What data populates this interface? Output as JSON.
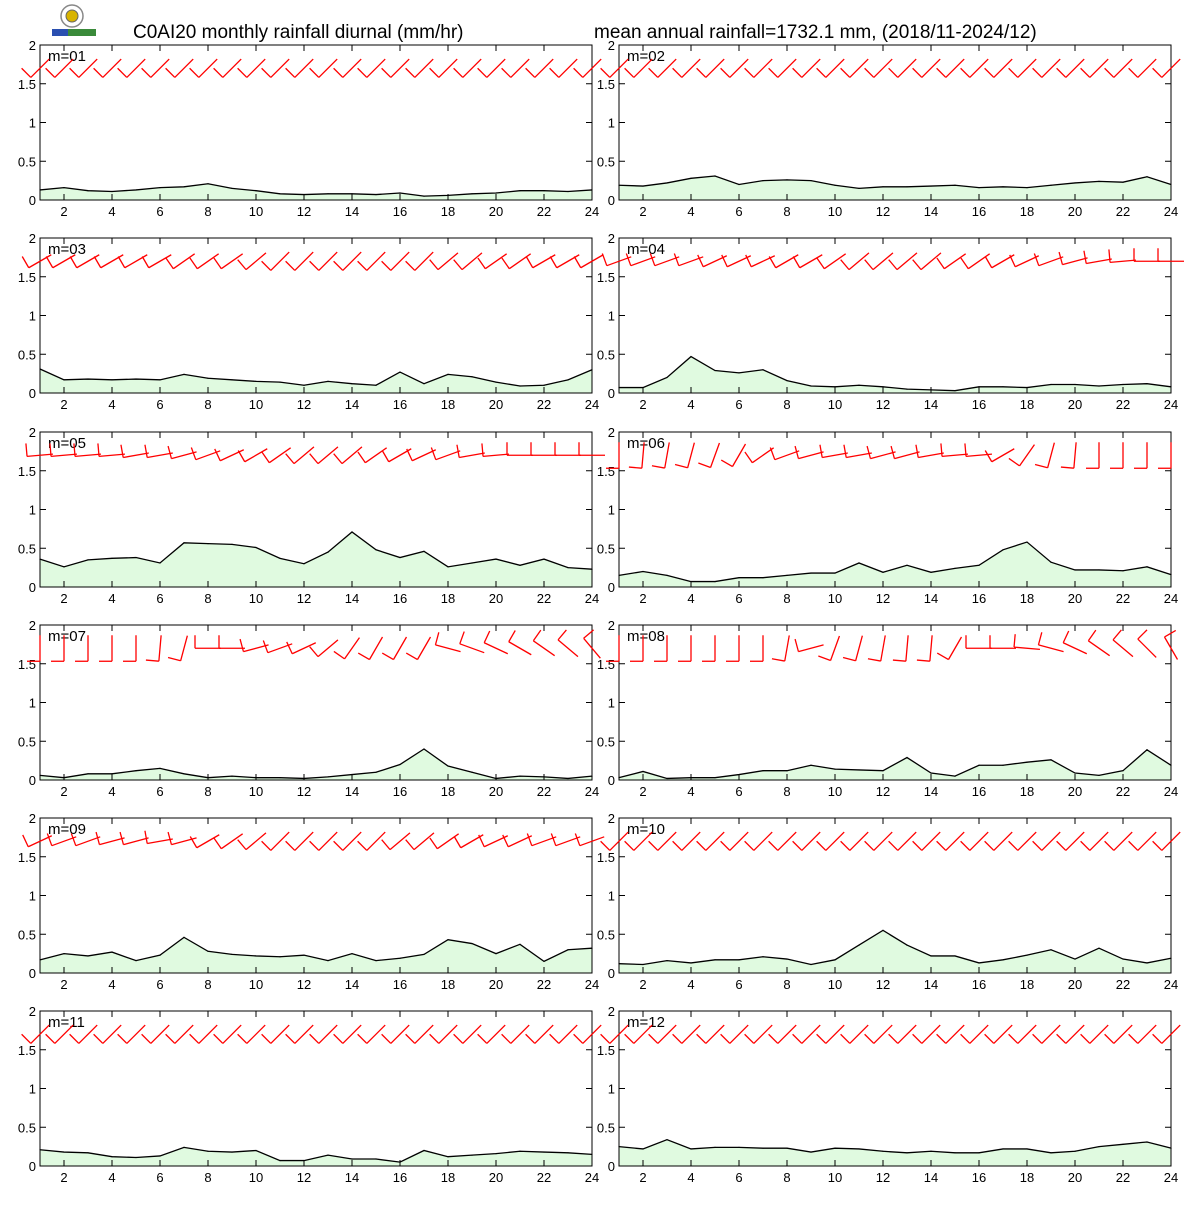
{
  "header": {
    "title_left": "C0AI20 monthly rainfall diurnal (mm/hr)",
    "title_right": "mean annual rainfall=1732.1 mm, (2018/11-2024/12)"
  },
  "colors": {
    "rain_line": "#000000",
    "rain_fill": "#e0fae0",
    "wind_barb": "#ff0000",
    "frame": "#000000"
  },
  "chart_data": {
    "type": "area",
    "x": [
      1,
      2,
      3,
      4,
      5,
      6,
      7,
      8,
      9,
      10,
      11,
      12,
      13,
      14,
      15,
      16,
      17,
      18,
      19,
      20,
      21,
      22,
      23,
      24
    ],
    "xlim": [
      1,
      24
    ],
    "ylim": [
      0,
      2
    ],
    "xticks": [
      "2",
      "4",
      "6",
      "8",
      "10",
      "12",
      "14",
      "16",
      "18",
      "20",
      "22",
      "24"
    ],
    "yticks": [
      "0",
      "0.5",
      "1",
      "1.5",
      "2"
    ],
    "wind_barb_level": 1.7,
    "panels": [
      {
        "label": "m=01",
        "rain": [
          0.13,
          0.16,
          0.12,
          0.11,
          0.13,
          0.16,
          0.17,
          0.21,
          0.15,
          0.12,
          0.08,
          0.07,
          0.08,
          0.08,
          0.07,
          0.09,
          0.05,
          0.06,
          0.08,
          0.09,
          0.12,
          0.12,
          0.11,
          0.13
        ],
        "wind_dir": [
          225,
          225,
          225,
          225,
          225,
          225,
          225,
          225,
          225,
          225,
          225,
          225,
          225,
          225,
          225,
          225,
          225,
          225,
          225,
          225,
          225,
          225,
          225,
          225
        ]
      },
      {
        "label": "m=02",
        "rain": [
          0.19,
          0.18,
          0.22,
          0.28,
          0.31,
          0.2,
          0.25,
          0.26,
          0.25,
          0.19,
          0.15,
          0.17,
          0.17,
          0.18,
          0.19,
          0.16,
          0.17,
          0.16,
          0.19,
          0.22,
          0.24,
          0.23,
          0.3,
          0.2
        ],
        "wind_dir": [
          225,
          225,
          225,
          225,
          225,
          225,
          225,
          225,
          225,
          225,
          225,
          225,
          225,
          225,
          225,
          225,
          225,
          225,
          225,
          225,
          225,
          225,
          225,
          225
        ]
      },
      {
        "label": "m=03",
        "rain": [
          0.31,
          0.17,
          0.18,
          0.17,
          0.18,
          0.17,
          0.24,
          0.19,
          0.17,
          0.15,
          0.14,
          0.1,
          0.15,
          0.12,
          0.1,
          0.27,
          0.12,
          0.24,
          0.21,
          0.14,
          0.09,
          0.1,
          0.17,
          0.3
        ],
        "wind_dir": [
          240,
          240,
          240,
          240,
          240,
          240,
          235,
          235,
          235,
          230,
          225,
          225,
          225,
          225,
          225,
          225,
          225,
          230,
          230,
          235,
          235,
          240,
          240,
          240
        ]
      },
      {
        "label": "m=04",
        "rain": [
          0.07,
          0.07,
          0.2,
          0.47,
          0.29,
          0.26,
          0.3,
          0.16,
          0.09,
          0.08,
          0.1,
          0.08,
          0.05,
          0.04,
          0.03,
          0.08,
          0.08,
          0.07,
          0.11,
          0.11,
          0.09,
          0.11,
          0.12,
          0.08
        ],
        "wind_dir": [
          250,
          250,
          250,
          250,
          245,
          245,
          245,
          240,
          240,
          235,
          230,
          230,
          230,
          230,
          235,
          235,
          240,
          245,
          250,
          255,
          260,
          265,
          270,
          270
        ]
      },
      {
        "label": "m=05",
        "rain": [
          0.36,
          0.26,
          0.35,
          0.37,
          0.38,
          0.31,
          0.57,
          0.56,
          0.55,
          0.51,
          0.37,
          0.3,
          0.45,
          0.71,
          0.48,
          0.38,
          0.46,
          0.26,
          0.31,
          0.36,
          0.28,
          0.36,
          0.25,
          0.23
        ],
        "wind_dir": [
          265,
          265,
          265,
          265,
          260,
          260,
          255,
          250,
          245,
          240,
          235,
          230,
          230,
          230,
          235,
          240,
          245,
          250,
          260,
          265,
          270,
          270,
          270,
          270
        ]
      },
      {
        "label": "m=06",
        "rain": [
          0.15,
          0.2,
          0.15,
          0.07,
          0.07,
          0.12,
          0.12,
          0.15,
          0.18,
          0.18,
          0.31,
          0.19,
          0.28,
          0.19,
          0.24,
          0.28,
          0.48,
          0.58,
          0.32,
          0.22,
          0.22,
          0.21,
          0.26,
          0.16
        ],
        "wind_dir": [
          180,
          185,
          190,
          195,
          200,
          210,
          235,
          250,
          255,
          260,
          260,
          255,
          255,
          260,
          265,
          265,
          240,
          215,
          195,
          185,
          180,
          180,
          180,
          180
        ]
      },
      {
        "label": "m=07",
        "rain": [
          0.06,
          0.03,
          0.08,
          0.08,
          0.12,
          0.15,
          0.08,
          0.03,
          0.05,
          0.03,
          0.03,
          0.02,
          0.04,
          0.07,
          0.1,
          0.2,
          0.4,
          0.18,
          0.1,
          0.02,
          0.05,
          0.04,
          0.02,
          0.05
        ],
        "wind_dir": [
          180,
          180,
          180,
          180,
          180,
          185,
          195,
          270,
          270,
          255,
          250,
          245,
          230,
          215,
          210,
          210,
          210,
          285,
          290,
          295,
          300,
          305,
          310,
          320
        ]
      },
      {
        "label": "m=08",
        "rain": [
          0.03,
          0.11,
          0.02,
          0.03,
          0.03,
          0.07,
          0.12,
          0.12,
          0.19,
          0.14,
          0.13,
          0.12,
          0.29,
          0.09,
          0.05,
          0.19,
          0.19,
          0.23,
          0.26,
          0.09,
          0.06,
          0.12,
          0.39,
          0.19
        ],
        "wind_dir": [
          180,
          180,
          180,
          180,
          180,
          180,
          180,
          190,
          255,
          200,
          195,
          190,
          185,
          185,
          210,
          270,
          270,
          275,
          285,
          295,
          305,
          310,
          315,
          330
        ]
      },
      {
        "label": "m=09",
        "rain": [
          0.17,
          0.25,
          0.22,
          0.27,
          0.16,
          0.23,
          0.46,
          0.28,
          0.24,
          0.22,
          0.21,
          0.23,
          0.16,
          0.25,
          0.16,
          0.19,
          0.24,
          0.43,
          0.38,
          0.25,
          0.37,
          0.15,
          0.3,
          0.32
        ],
        "wind_dir": [
          245,
          250,
          250,
          255,
          255,
          260,
          255,
          240,
          235,
          230,
          225,
          225,
          225,
          225,
          225,
          230,
          230,
          235,
          240,
          245,
          245,
          250,
          250,
          250
        ]
      },
      {
        "label": "m=10",
        "rain": [
          0.12,
          0.11,
          0.16,
          0.13,
          0.17,
          0.17,
          0.21,
          0.18,
          0.11,
          0.17,
          0.36,
          0.55,
          0.36,
          0.22,
          0.22,
          0.13,
          0.17,
          0.23,
          0.3,
          0.18,
          0.32,
          0.18,
          0.13,
          0.19
        ],
        "wind_dir": [
          225,
          225,
          225,
          225,
          225,
          225,
          225,
          225,
          225,
          225,
          225,
          225,
          225,
          225,
          225,
          225,
          225,
          225,
          225,
          225,
          225,
          225,
          225,
          225
        ]
      },
      {
        "label": "m=11",
        "rain": [
          0.21,
          0.18,
          0.17,
          0.12,
          0.11,
          0.13,
          0.24,
          0.19,
          0.18,
          0.2,
          0.07,
          0.07,
          0.14,
          0.09,
          0.09,
          0.05,
          0.2,
          0.12,
          0.14,
          0.16,
          0.19,
          0.18,
          0.17,
          0.15
        ],
        "wind_dir": [
          225,
          225,
          225,
          225,
          225,
          225,
          225,
          225,
          225,
          225,
          225,
          225,
          225,
          225,
          225,
          225,
          225,
          225,
          225,
          225,
          225,
          225,
          225,
          225
        ]
      },
      {
        "label": "m=12",
        "rain": [
          0.25,
          0.22,
          0.34,
          0.22,
          0.24,
          0.24,
          0.23,
          0.23,
          0.18,
          0.23,
          0.22,
          0.19,
          0.17,
          0.19,
          0.17,
          0.17,
          0.22,
          0.22,
          0.17,
          0.19,
          0.25,
          0.28,
          0.31,
          0.23
        ],
        "wind_dir": [
          225,
          225,
          225,
          225,
          225,
          225,
          225,
          225,
          225,
          225,
          225,
          225,
          225,
          225,
          225,
          225,
          225,
          225,
          225,
          225,
          225,
          225,
          225,
          225
        ]
      }
    ]
  }
}
